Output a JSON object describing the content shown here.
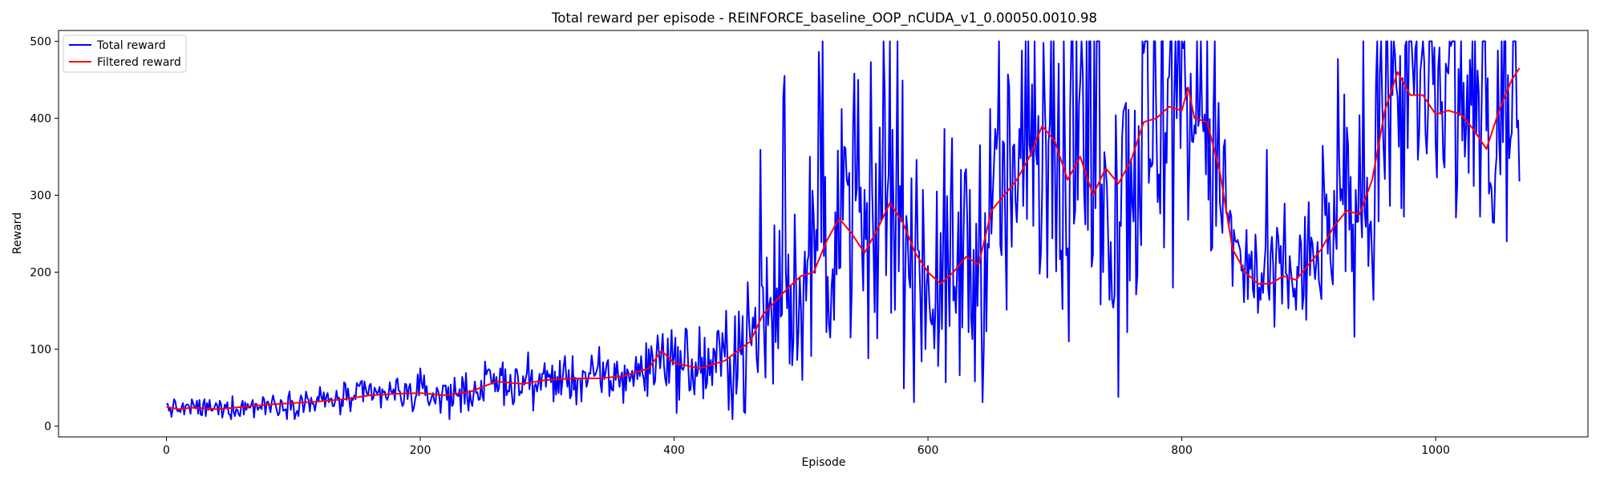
{
  "chart_data": {
    "type": "line",
    "title": "Total reward per episode - REINFORCE_baseline_OOP_nCUDA_v1_0.00050.0010.98",
    "xlabel": "Episode",
    "ylabel": "Reward",
    "xlim": [
      -85,
      1120
    ],
    "ylim": [
      -14,
      514
    ],
    "xticks": [
      0,
      200,
      400,
      600,
      800,
      1000
    ],
    "yticks": [
      0,
      100,
      200,
      300,
      400,
      500
    ],
    "grid": false,
    "legend_position": "top-left",
    "series": [
      {
        "name": "Total reward",
        "color": "#0000ff",
        "keypoints": [
          [
            0,
            25
          ],
          [
            10,
            22
          ],
          [
            20,
            24
          ],
          [
            40,
            22
          ],
          [
            60,
            25
          ],
          [
            80,
            28
          ],
          [
            100,
            30
          ],
          [
            120,
            32
          ],
          [
            140,
            35
          ],
          [
            160,
            40
          ],
          [
            180,
            42
          ],
          [
            200,
            43
          ],
          [
            220,
            40
          ],
          [
            240,
            45
          ],
          [
            260,
            58
          ],
          [
            280,
            55
          ],
          [
            300,
            60
          ],
          [
            320,
            62
          ],
          [
            340,
            62
          ],
          [
            360,
            65
          ],
          [
            380,
            75
          ],
          [
            390,
            98
          ],
          [
            400,
            82
          ],
          [
            420,
            75
          ],
          [
            440,
            85
          ],
          [
            460,
            110
          ],
          [
            470,
            145
          ],
          [
            490,
            180
          ],
          [
            500,
            195
          ],
          [
            510,
            200
          ],
          [
            520,
            240
          ],
          [
            530,
            270
          ],
          [
            540,
            250
          ],
          [
            550,
            225
          ],
          [
            560,
            255
          ],
          [
            570,
            290
          ],
          [
            580,
            265
          ],
          [
            590,
            225
          ],
          [
            600,
            200
          ],
          [
            610,
            185
          ],
          [
            620,
            200
          ],
          [
            630,
            220
          ],
          [
            640,
            210
          ],
          [
            650,
            280
          ],
          [
            660,
            300
          ],
          [
            670,
            320
          ],
          [
            680,
            350
          ],
          [
            690,
            390
          ],
          [
            700,
            370
          ],
          [
            710,
            320
          ],
          [
            720,
            350
          ],
          [
            730,
            300
          ],
          [
            740,
            335
          ],
          [
            750,
            315
          ],
          [
            760,
            345
          ],
          [
            770,
            395
          ],
          [
            780,
            400
          ],
          [
            790,
            415
          ],
          [
            800,
            410
          ],
          [
            805,
            440
          ],
          [
            810,
            400
          ],
          [
            820,
            395
          ],
          [
            830,
            330
          ],
          [
            840,
            230
          ],
          [
            850,
            200
          ],
          [
            860,
            185
          ],
          [
            870,
            185
          ],
          [
            880,
            195
          ],
          [
            890,
            190
          ],
          [
            900,
            210
          ],
          [
            910,
            230
          ],
          [
            920,
            260
          ],
          [
            930,
            280
          ],
          [
            940,
            275
          ],
          [
            950,
            320
          ],
          [
            960,
            410
          ],
          [
            970,
            460
          ],
          [
            980,
            430
          ],
          [
            990,
            430
          ],
          [
            1000,
            405
          ],
          [
            1010,
            410
          ],
          [
            1020,
            405
          ],
          [
            1030,
            385
          ],
          [
            1040,
            360
          ],
          [
            1050,
            410
          ],
          [
            1060,
            450
          ],
          [
            1066,
            465
          ]
        ],
        "noise_envelope": [
          [
            0,
            8
          ],
          [
            200,
            18
          ],
          [
            350,
            25
          ],
          [
            400,
            35
          ],
          [
            440,
            45
          ],
          [
            480,
            90
          ],
          [
            520,
            110
          ],
          [
            600,
            120
          ],
          [
            650,
            130
          ],
          [
            700,
            150
          ],
          [
            780,
            180
          ],
          [
            820,
            150
          ],
          [
            840,
            60
          ],
          [
            900,
            60
          ],
          [
            930,
            80
          ],
          [
            950,
            110
          ],
          [
            980,
            130
          ],
          [
            1066,
            140
          ]
        ],
        "cap": 500
      },
      {
        "name": "Filtered reward",
        "color": "#ff0000"
      }
    ]
  }
}
